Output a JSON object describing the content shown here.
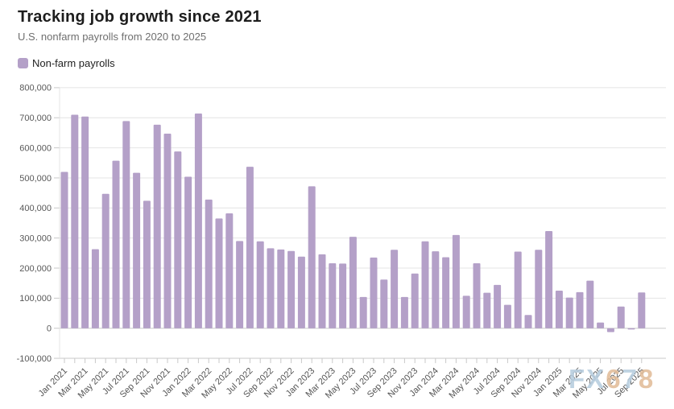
{
  "header": {
    "title": "Tracking job growth since 2021",
    "subtitle": "U.S. nonfarm payrolls from 2020 to 2025"
  },
  "legend": {
    "label": "Non-farm payrolls",
    "swatch_color": "#b4a0c8"
  },
  "watermark": {
    "text": "FX678",
    "letters": [
      {
        "ch": "F",
        "color": "#b7cddf"
      },
      {
        "ch": "X",
        "color": "#b7cddf"
      },
      {
        "ch": "6",
        "color": "#e2bd99"
      },
      {
        "ch": "7",
        "color": "#b7cddf"
      },
      {
        "ch": "8",
        "color": "#e2bd99"
      }
    ]
  },
  "chart_data": {
    "type": "bar",
    "title": "Tracking job growth since 2021",
    "subtitle": "U.S. nonfarm payrolls from 2020 to 2025",
    "series_name": "Non-farm payrolls",
    "bar_color": "#b4a0c8",
    "grid": "horizontal",
    "legend_position": "top-left",
    "ylim": [
      -100000,
      800000
    ],
    "y_tick_step": 100000,
    "x_label_every": 2,
    "categories": [
      "Jan 2021",
      "Feb 2021",
      "Mar 2021",
      "Apr 2021",
      "May 2021",
      "Jun 2021",
      "Jul 2021",
      "Aug 2021",
      "Sep 2021",
      "Oct 2021",
      "Nov 2021",
      "Dec 2021",
      "Jan 2022",
      "Feb 2022",
      "Mar 2022",
      "Apr 2022",
      "May 2022",
      "Jun 2022",
      "Jul 2022",
      "Aug 2022",
      "Sep 2022",
      "Oct 2022",
      "Nov 2022",
      "Dec 2022",
      "Jan 2023",
      "Feb 2023",
      "Mar 2023",
      "Apr 2023",
      "May 2023",
      "Jun 2023",
      "Jul 2023",
      "Aug 2023",
      "Sep 2023",
      "Oct 2023",
      "Nov 2023",
      "Dec 2023",
      "Jan 2024",
      "Feb 2024",
      "Mar 2024",
      "Apr 2024",
      "May 2024",
      "Jun 2024",
      "Jul 2024",
      "Aug 2024",
      "Sep 2024",
      "Oct 2024",
      "Nov 2024",
      "Dec 2024",
      "Jan 2025",
      "Feb 2025",
      "Mar 2025",
      "Apr 2025",
      "May 2025",
      "Jun 2025",
      "Jul 2025",
      "Aug 2025",
      "Sep 2025"
    ],
    "values": [
      520000,
      710000,
      704000,
      263000,
      447000,
      557000,
      689000,
      517000,
      424000,
      677000,
      647000,
      588000,
      504000,
      714000,
      428000,
      365000,
      382000,
      290000,
      537000,
      289000,
      266000,
      262000,
      257000,
      238000,
      472000,
      246000,
      216000,
      215000,
      304000,
      104000,
      235000,
      162000,
      261000,
      104000,
      182000,
      289000,
      256000,
      236000,
      310000,
      108000,
      216000,
      118000,
      144000,
      78000,
      255000,
      44000,
      261000,
      323000,
      125000,
      102000,
      120000,
      158000,
      19000,
      -13000,
      72000,
      -4000,
      119000
    ]
  }
}
